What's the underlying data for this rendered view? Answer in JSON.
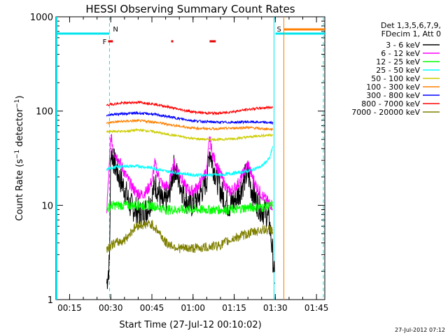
{
  "chart_data": {
    "type": "line",
    "title": "HESSI Observing Summary Count Rates",
    "xlabel": "Start Time (27-Jul-12 00:10:02)",
    "ylabel": "Count Rate (s⁻¹ detector⁻¹)",
    "y_scale": "log",
    "ylim": [
      1,
      1000
    ],
    "x_unit": "minutes after 00:10:02",
    "xlim": [
      0,
      98
    ],
    "x_ticks": [
      "00:15",
      "00:30",
      "00:45",
      "01:00",
      "01:15",
      "01:30",
      "01:45"
    ],
    "y_ticks": [
      "1",
      "10",
      "100",
      "1000"
    ],
    "legend": {
      "placement": "right",
      "header_lines": [
        "Det 1,3,5,6,7,9,",
        "FDecim 1, Att 0"
      ]
    },
    "flags": {
      "markers": [
        {
          "label": "N",
          "x": 19.5,
          "color": "#00e5ee"
        },
        {
          "label": "S",
          "x": 80.0,
          "color": "#00e5ee"
        },
        {
          "label": "F",
          "x": 17.0,
          "color": "#e00000"
        }
      ],
      "flare_segments": [
        [
          19.0,
          20.5
        ],
        [
          42.0,
          42.5
        ],
        [
          56.0,
          58.0
        ]
      ],
      "date_stamp": "27-Jul-2012 07:12"
    },
    "series": [
      {
        "name": "3 - 6 keV",
        "color": "#000000",
        "points": [
          [
            18.5,
            1.5
          ],
          [
            19.5,
            2.5
          ],
          [
            20,
            40
          ],
          [
            21,
            30
          ],
          [
            23,
            20
          ],
          [
            25,
            15
          ],
          [
            27,
            10
          ],
          [
            29,
            9
          ],
          [
            31,
            8
          ],
          [
            33,
            9
          ],
          [
            35,
            12
          ],
          [
            36,
            17
          ],
          [
            37,
            15
          ],
          [
            39,
            10
          ],
          [
            41,
            12
          ],
          [
            43,
            25
          ],
          [
            45,
            18
          ],
          [
            47,
            12
          ],
          [
            49,
            10
          ],
          [
            51,
            11
          ],
          [
            53,
            14
          ],
          [
            55,
            19
          ],
          [
            56,
            40
          ],
          [
            57,
            28
          ],
          [
            59,
            18
          ],
          [
            61,
            12
          ],
          [
            63,
            10
          ],
          [
            65,
            11
          ],
          [
            67,
            14
          ],
          [
            69,
            20
          ],
          [
            70,
            22
          ],
          [
            71,
            16
          ],
          [
            73,
            11
          ],
          [
            75,
            9
          ],
          [
            77,
            8
          ],
          [
            78,
            6
          ],
          [
            79,
            3
          ],
          [
            79.8,
            1.5
          ]
        ]
      },
      {
        "name": "6 - 12 keV",
        "color": "#ff00ff",
        "points": [
          [
            18.5,
            9
          ],
          [
            19.5,
            28
          ],
          [
            20,
            55
          ],
          [
            21,
            38
          ],
          [
            23,
            30
          ],
          [
            25,
            22
          ],
          [
            27,
            17
          ],
          [
            29,
            14
          ],
          [
            31,
            13
          ],
          [
            33,
            14
          ],
          [
            35,
            18
          ],
          [
            36,
            28
          ],
          [
            37,
            22
          ],
          [
            39,
            16
          ],
          [
            41,
            16
          ],
          [
            43,
            28
          ],
          [
            45,
            22
          ],
          [
            47,
            16
          ],
          [
            49,
            14
          ],
          [
            51,
            15
          ],
          [
            53,
            18
          ],
          [
            55,
            24
          ],
          [
            56,
            52
          ],
          [
            57,
            35
          ],
          [
            59,
            25
          ],
          [
            61,
            18
          ],
          [
            63,
            14
          ],
          [
            65,
            15
          ],
          [
            67,
            18
          ],
          [
            69,
            24
          ],
          [
            70,
            28
          ],
          [
            71,
            22
          ],
          [
            73,
            16
          ],
          [
            75,
            13
          ],
          [
            77,
            11
          ],
          [
            79,
            10
          ]
        ]
      },
      {
        "name": "12 - 25 keV",
        "color": "#00ff00",
        "points": [
          [
            18.5,
            9
          ],
          [
            20,
            10
          ],
          [
            25,
            10
          ],
          [
            30,
            10
          ],
          [
            35,
            10
          ],
          [
            40,
            9
          ],
          [
            45,
            9
          ],
          [
            50,
            9
          ],
          [
            55,
            9
          ],
          [
            60,
            9
          ],
          [
            65,
            9
          ],
          [
            70,
            9.5
          ],
          [
            75,
            9.5
          ],
          [
            79,
            10
          ]
        ]
      },
      {
        "name": "25 - 50 keV",
        "color": "#00ffff",
        "points": [
          [
            18.5,
            24
          ],
          [
            20,
            25
          ],
          [
            25,
            26
          ],
          [
            30,
            26
          ],
          [
            35,
            25
          ],
          [
            40,
            23
          ],
          [
            45,
            22
          ],
          [
            50,
            21
          ],
          [
            55,
            21
          ],
          [
            60,
            21
          ],
          [
            65,
            22
          ],
          [
            70,
            23
          ],
          [
            75,
            26
          ],
          [
            78,
            32
          ],
          [
            79,
            42
          ]
        ]
      },
      {
        "name": "50 - 100 keV",
        "color": "#cccc00",
        "points": [
          [
            18.5,
            60
          ],
          [
            20,
            61
          ],
          [
            25,
            61
          ],
          [
            30,
            63
          ],
          [
            35,
            61
          ],
          [
            40,
            57
          ],
          [
            45,
            54
          ],
          [
            50,
            51
          ],
          [
            55,
            50
          ],
          [
            60,
            50
          ],
          [
            65,
            51
          ],
          [
            70,
            53
          ],
          [
            75,
            55
          ],
          [
            79,
            56
          ]
        ]
      },
      {
        "name": "100 - 300 keV",
        "color": "#ff8000",
        "points": [
          [
            18.5,
            74
          ],
          [
            20,
            76
          ],
          [
            25,
            78
          ],
          [
            30,
            79
          ],
          [
            35,
            77
          ],
          [
            40,
            73
          ],
          [
            45,
            69
          ],
          [
            50,
            66
          ],
          [
            55,
            65
          ],
          [
            60,
            65
          ],
          [
            65,
            66
          ],
          [
            70,
            67
          ],
          [
            75,
            65
          ],
          [
            79,
            64
          ]
        ]
      },
      {
        "name": "300 - 800 keV",
        "color": "#0000ff",
        "points": [
          [
            18.5,
            90
          ],
          [
            20,
            92
          ],
          [
            25,
            94
          ],
          [
            30,
            95
          ],
          [
            35,
            93
          ],
          [
            40,
            88
          ],
          [
            45,
            83
          ],
          [
            50,
            79
          ],
          [
            55,
            77
          ],
          [
            60,
            76
          ],
          [
            65,
            76
          ],
          [
            70,
            77
          ],
          [
            75,
            76
          ],
          [
            79,
            75
          ]
        ]
      },
      {
        "name": "800 - 7000 keV",
        "color": "#ff0000",
        "points": [
          [
            18.5,
            115
          ],
          [
            20,
            118
          ],
          [
            25,
            122
          ],
          [
            30,
            124
          ],
          [
            35,
            120
          ],
          [
            40,
            112
          ],
          [
            45,
            104
          ],
          [
            50,
            98
          ],
          [
            55,
            95
          ],
          [
            60,
            95
          ],
          [
            65,
            99
          ],
          [
            70,
            104
          ],
          [
            75,
            108
          ],
          [
            79,
            110
          ]
        ]
      },
      {
        "name": "7000 - 20000 keV",
        "color": "#808000",
        "points": [
          [
            18.5,
            3.5
          ],
          [
            20,
            3.8
          ],
          [
            25,
            4.3
          ],
          [
            28,
            5.5
          ],
          [
            30,
            6.2
          ],
          [
            35,
            6.3
          ],
          [
            38,
            5
          ],
          [
            40,
            4
          ],
          [
            45,
            3.5
          ],
          [
            50,
            3.5
          ],
          [
            55,
            3.6
          ],
          [
            60,
            3.8
          ],
          [
            65,
            4.5
          ],
          [
            70,
            5
          ],
          [
            75,
            5.5
          ],
          [
            79,
            5.5
          ]
        ]
      }
    ]
  }
}
